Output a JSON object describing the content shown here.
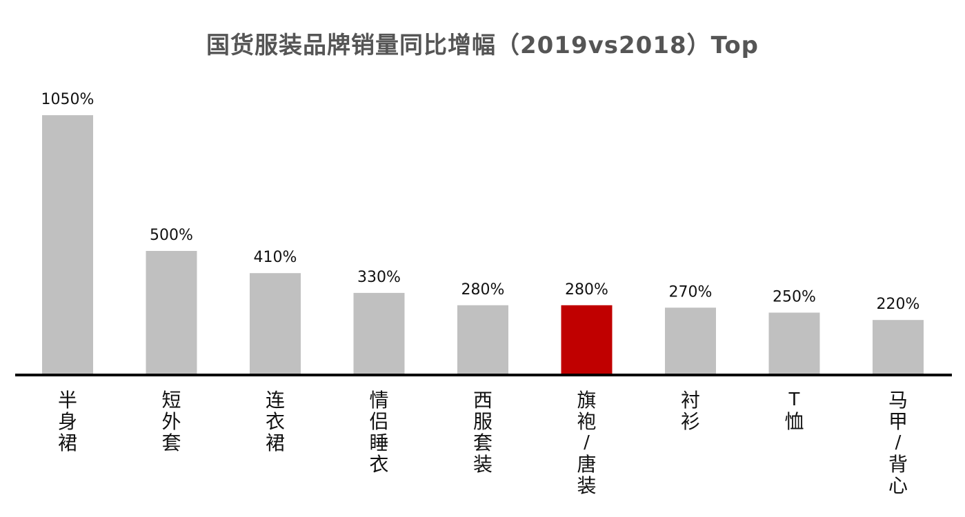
{
  "chart_data": {
    "type": "bar",
    "title": "国货服装品牌销量同比增幅（2019vs2018）Top",
    "xlabel": "",
    "ylabel": "",
    "categories": [
      "半身裙",
      "短外套",
      "连衣裙",
      "情侣睡衣",
      "西服套装",
      "旗袍/唐装",
      "衬衫",
      "T恤",
      "马甲/背心"
    ],
    "values": [
      1050,
      500,
      410,
      330,
      280,
      280,
      270,
      250,
      220
    ],
    "value_labels": [
      "1050%",
      "500%",
      "410%",
      "330%",
      "280%",
      "280%",
      "270%",
      "250%",
      "220%"
    ],
    "ylim": [
      0,
      1100
    ],
    "grid": false,
    "legend": "none",
    "colors": {
      "bar": "#c0c0c0",
      "highlight": "#c00000",
      "axis": "#000000"
    },
    "highlight_index": 5
  }
}
